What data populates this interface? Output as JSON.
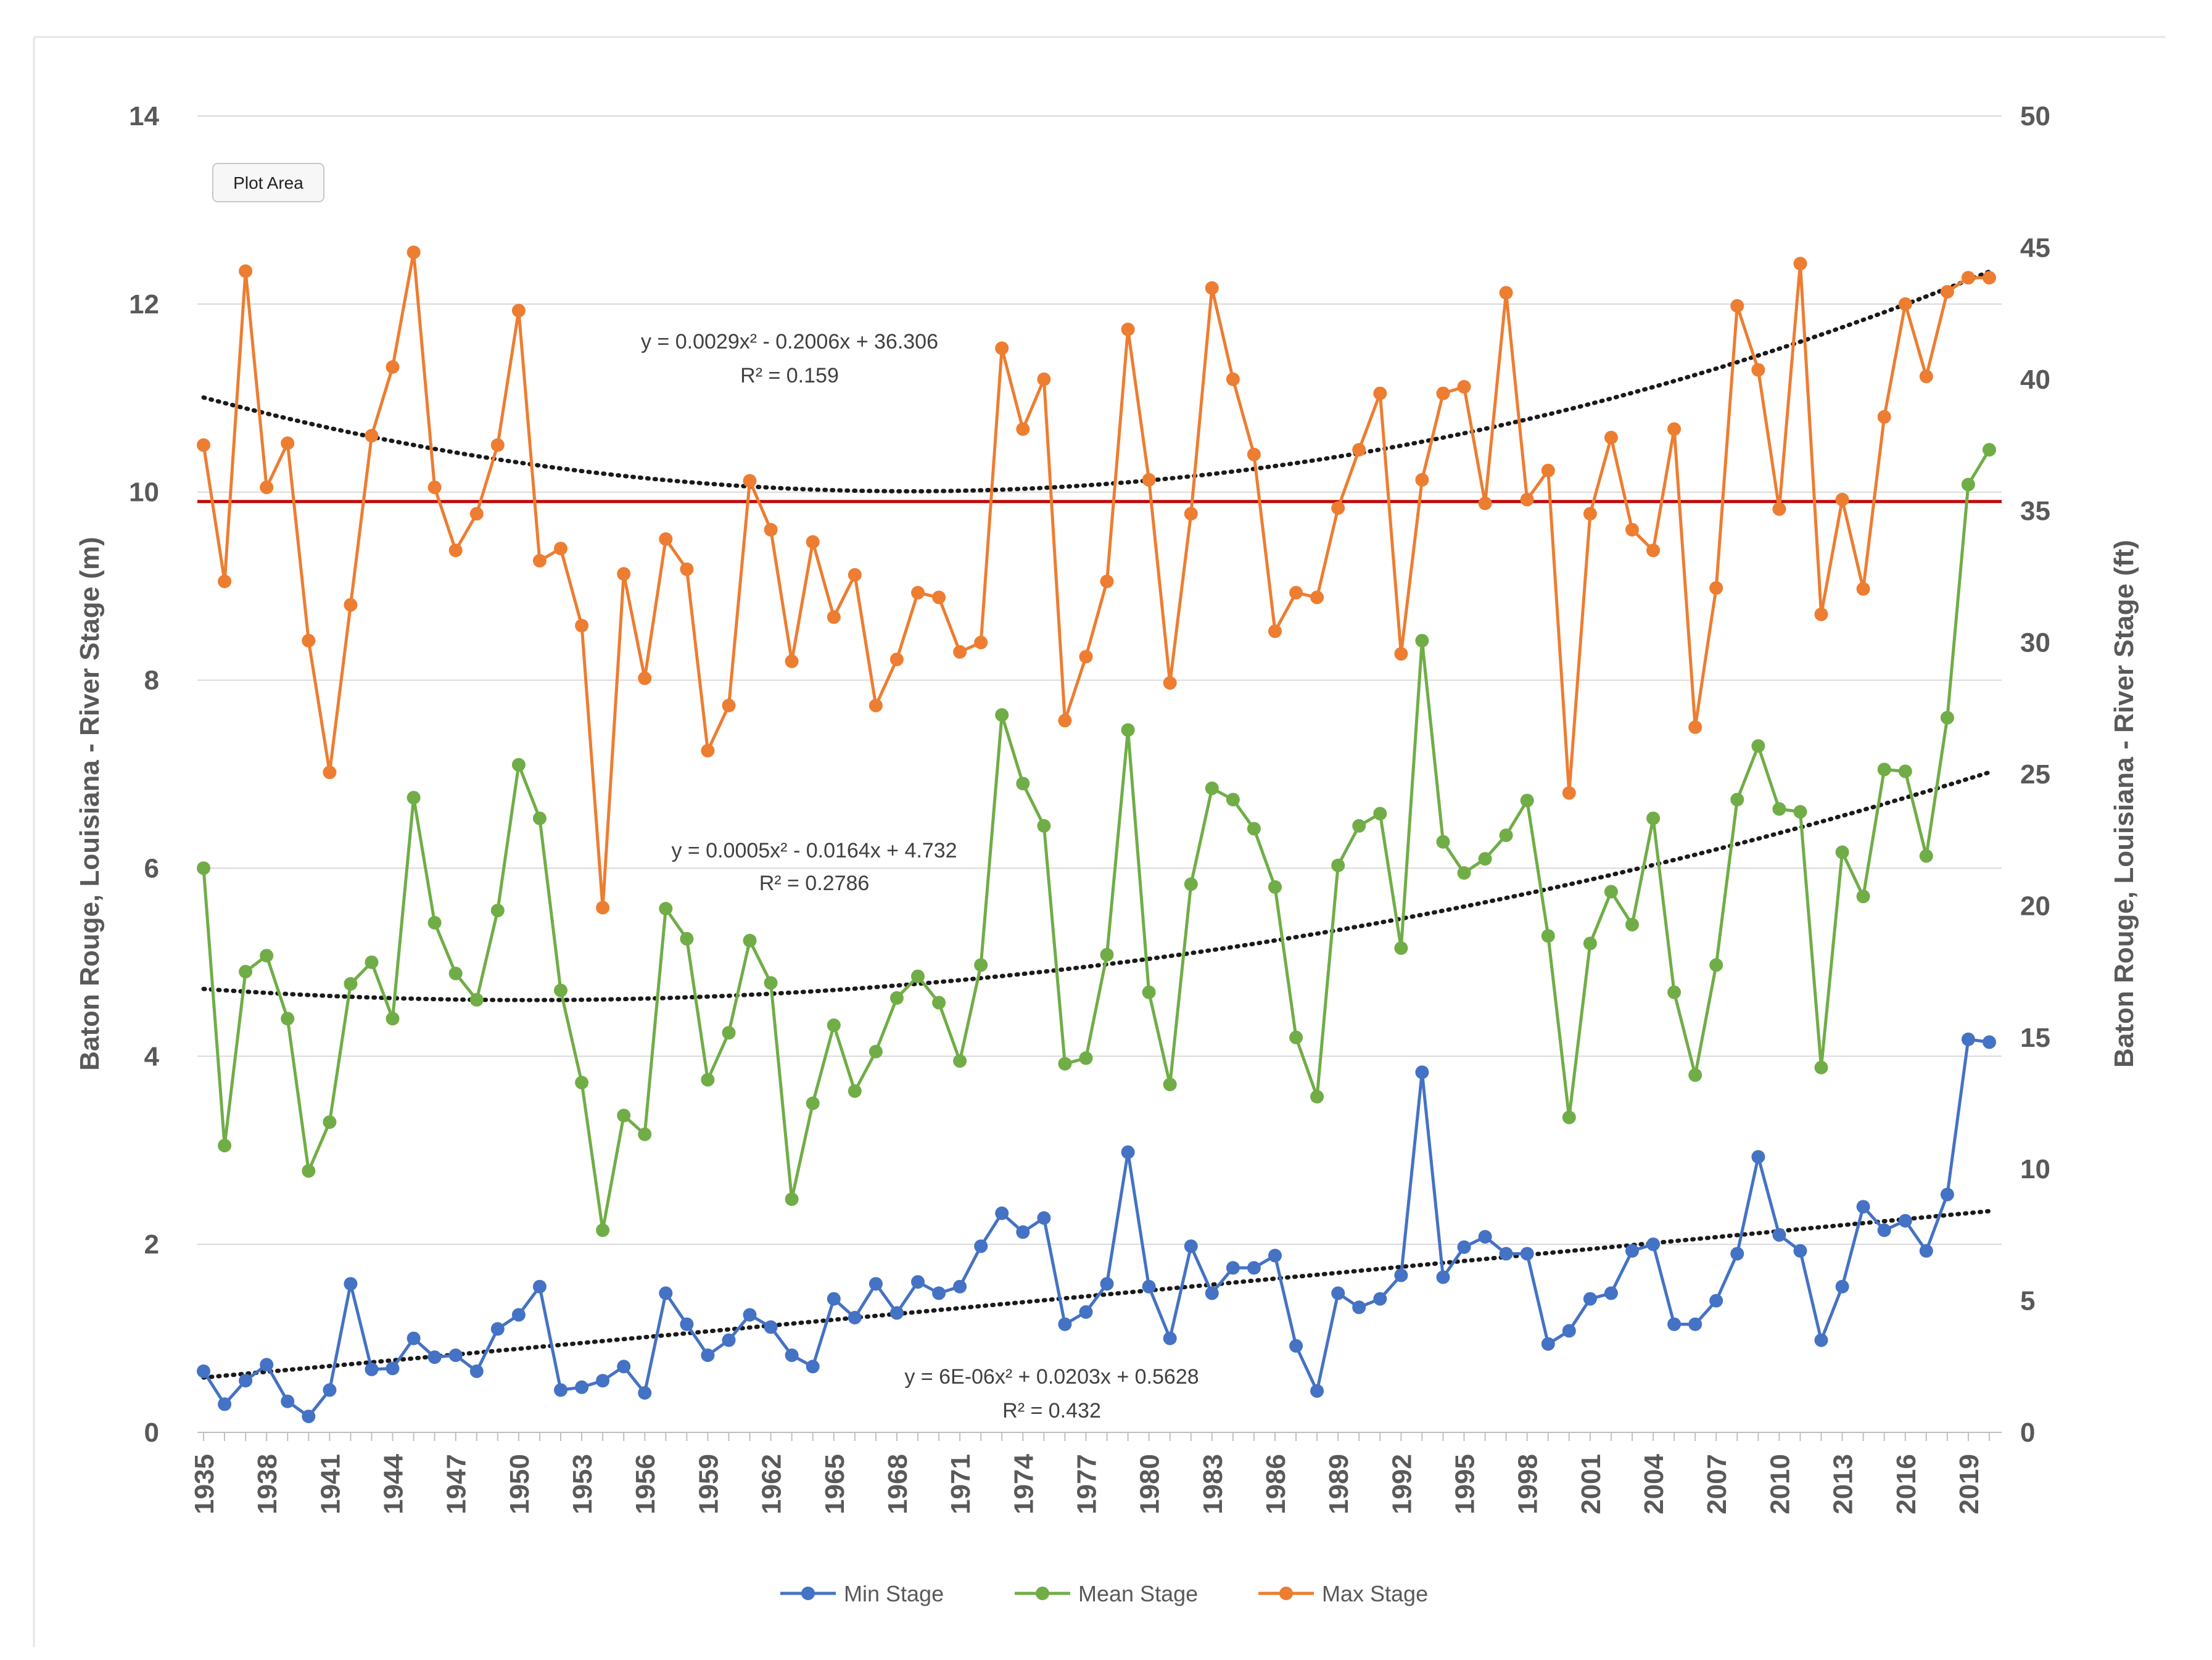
{
  "chart_data": {
    "type": "line",
    "tooltip": "Plot Area",
    "y_left_label": "Baton Rouge, Louisiana - River Stage (m)",
    "y_right_label": "Baton Rouge, Louisiana - River Stage (ft)",
    "y_left_range": [
      0,
      14
    ],
    "y_left_ticks": [
      "0",
      "2",
      "4",
      "6",
      "8",
      "10",
      "12",
      "14"
    ],
    "y_right_range": [
      0,
      50
    ],
    "y_right_ticks": [
      "0",
      "5",
      "10",
      "15",
      "20",
      "25",
      "30",
      "35",
      "40",
      "45",
      "50"
    ],
    "x_range": [
      1935,
      2020
    ],
    "x_tick_labels": [
      "1935",
      "1938",
      "1941",
      "1944",
      "1947",
      "1950",
      "1953",
      "1956",
      "1959",
      "1962",
      "1965",
      "1968",
      "1971",
      "1974",
      "1977",
      "1980",
      "1983",
      "1986",
      "1989",
      "1992",
      "1995",
      "1998",
      "2001",
      "2004",
      "2007",
      "2010",
      "2013",
      "2016",
      "2019"
    ],
    "x": [
      1935,
      1936,
      1937,
      1938,
      1939,
      1940,
      1941,
      1942,
      1943,
      1944,
      1945,
      1946,
      1947,
      1948,
      1949,
      1950,
      1951,
      1952,
      1953,
      1954,
      1955,
      1956,
      1957,
      1958,
      1959,
      1960,
      1961,
      1962,
      1963,
      1964,
      1965,
      1966,
      1967,
      1968,
      1969,
      1970,
      1971,
      1972,
      1973,
      1974,
      1975,
      1976,
      1977,
      1978,
      1979,
      1980,
      1981,
      1982,
      1983,
      1984,
      1985,
      1986,
      1987,
      1988,
      1989,
      1990,
      1991,
      1992,
      1993,
      1994,
      1995,
      1996,
      1997,
      1998,
      1999,
      2000,
      2001,
      2002,
      2003,
      2004,
      2005,
      2006,
      2007,
      2008,
      2009,
      2010,
      2011,
      2012,
      2013,
      2014,
      2015,
      2016,
      2017,
      2018,
      2019,
      2020
    ],
    "reference_line": {
      "value": 9.9,
      "color": "#c00000"
    },
    "series": [
      {
        "name": "Min Stage",
        "color": "#4472c4",
        "values": [
          0.65,
          0.3,
          0.55,
          0.72,
          0.33,
          0.17,
          0.45,
          1.58,
          0.67,
          0.68,
          1.0,
          0.8,
          0.82,
          0.65,
          1.1,
          1.25,
          1.55,
          0.45,
          0.48,
          0.55,
          0.7,
          0.42,
          1.48,
          1.15,
          0.82,
          0.98,
          1.25,
          1.12,
          0.82,
          0.7,
          1.42,
          1.22,
          1.58,
          1.27,
          1.6,
          1.48,
          1.55,
          1.98,
          2.33,
          2.13,
          2.28,
          1.15,
          1.28,
          1.58,
          2.98,
          1.55,
          1.0,
          1.98,
          1.48,
          1.75,
          1.75,
          1.88,
          0.92,
          0.44,
          1.48,
          1.33,
          1.42,
          1.67,
          3.83,
          1.65,
          1.97,
          2.08,
          1.9,
          1.9,
          0.94,
          1.08,
          1.42,
          1.48,
          1.93,
          2.0,
          1.15,
          1.15,
          1.4,
          1.9,
          2.93,
          2.1,
          1.93,
          0.98,
          1.55,
          2.4,
          2.15,
          2.25,
          1.93,
          2.53,
          4.18,
          4.15
        ]
      },
      {
        "name": "Mean Stage",
        "color": "#70ad47",
        "values": [
          6.0,
          3.05,
          4.9,
          5.07,
          4.4,
          2.78,
          3.3,
          4.77,
          5.0,
          4.4,
          6.75,
          5.42,
          4.88,
          4.6,
          5.55,
          7.1,
          6.53,
          4.7,
          3.72,
          2.15,
          3.37,
          3.17,
          5.57,
          5.25,
          3.75,
          4.25,
          5.23,
          4.78,
          2.48,
          3.5,
          4.33,
          3.63,
          4.05,
          4.62,
          4.85,
          4.57,
          3.95,
          4.97,
          7.63,
          6.9,
          6.45,
          3.92,
          3.98,
          5.08,
          7.47,
          4.68,
          3.7,
          5.83,
          6.85,
          6.73,
          6.42,
          5.8,
          4.2,
          3.57,
          6.03,
          6.45,
          6.58,
          5.15,
          8.42,
          6.28,
          5.95,
          6.1,
          6.35,
          6.72,
          5.28,
          3.35,
          5.2,
          5.75,
          5.4,
          6.53,
          4.68,
          3.8,
          4.97,
          6.73,
          7.3,
          6.63,
          6.6,
          3.88,
          6.17,
          5.7,
          7.05,
          7.03,
          6.13,
          7.6,
          10.08,
          10.45
        ]
      },
      {
        "name": "Max Stage",
        "color": "#ed7d31",
        "values": [
          10.5,
          9.05,
          12.35,
          10.05,
          10.52,
          8.42,
          7.02,
          8.8,
          10.6,
          11.33,
          12.55,
          10.05,
          9.38,
          9.77,
          10.5,
          11.93,
          9.27,
          9.4,
          8.58,
          5.58,
          9.13,
          8.02,
          9.5,
          9.18,
          7.25,
          7.73,
          10.12,
          9.6,
          8.2,
          9.47,
          8.67,
          9.12,
          7.73,
          8.22,
          8.93,
          8.88,
          8.3,
          8.4,
          11.53,
          10.67,
          11.2,
          7.57,
          8.25,
          9.05,
          11.73,
          10.13,
          7.97,
          9.77,
          12.17,
          11.2,
          10.4,
          8.52,
          8.93,
          8.88,
          9.83,
          10.45,
          11.05,
          8.28,
          10.13,
          11.05,
          11.12,
          9.88,
          12.12,
          9.92,
          10.23,
          6.8,
          9.77,
          10.58,
          9.6,
          9.38,
          10.67,
          7.5,
          8.98,
          11.98,
          11.3,
          9.82,
          12.43,
          8.7,
          9.92,
          8.97,
          10.8,
          12.0,
          11.23,
          12.13,
          12.28,
          12.28
        ]
      }
    ],
    "trendlines": [
      {
        "series": "Max Stage",
        "equation": "y = 0.0029x² - 0.2006x + 36.306",
        "r2_label": "R² = 0.159",
        "a": 0.0029,
        "b": -0.2006,
        "c": 36.306,
        "unit": "ft"
      },
      {
        "series": "Mean Stage",
        "equation": "y = 0.0005x² - 0.0164x + 4.732",
        "r2_label": "R² = 0.2786",
        "a": 0.0005,
        "b": -0.0164,
        "c": 4.732,
        "unit": "m"
      },
      {
        "series": "Min Stage",
        "equation": "y = 6E-06x² + 0.0203x + 0.5628",
        "r2_label": "R² = 0.432",
        "a": 6e-06,
        "b": 0.0203,
        "c": 0.5628,
        "unit": "m"
      }
    ],
    "legend": [
      "Min Stage",
      "Mean Stage",
      "Max Stage"
    ]
  }
}
